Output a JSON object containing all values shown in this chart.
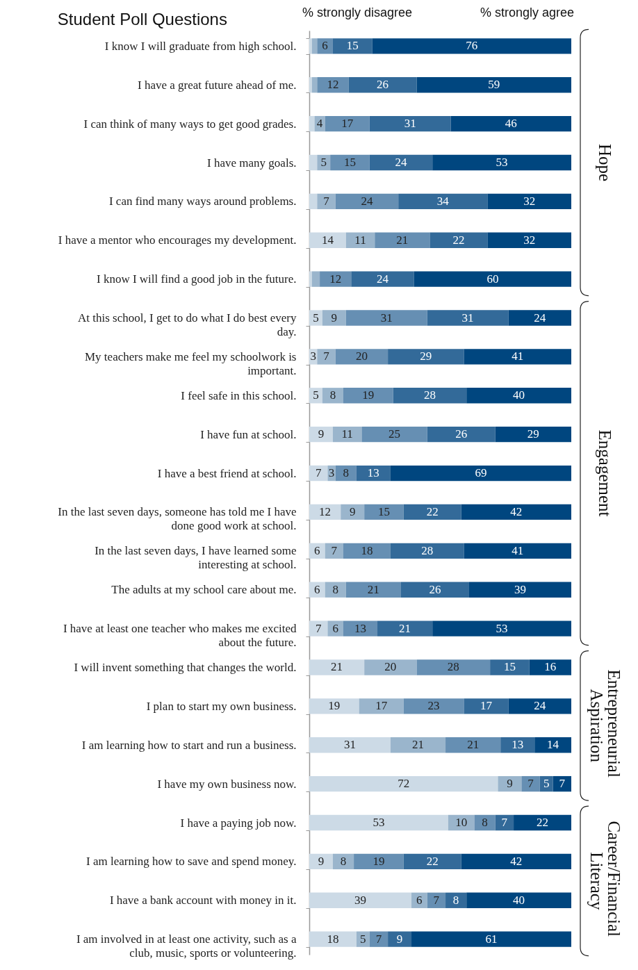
{
  "chart_data": {
    "type": "bar",
    "orientation": "horizontal",
    "stacked": true,
    "title": "Student Poll Questions",
    "categories": [
      "I know I will graduate from high school.",
      "I have a great future ahead of me.",
      "I can think of many ways to get good grades.",
      "I have many goals.",
      "I can find many ways around problems.",
      "I have a mentor who encourages my development.",
      "I know I will find a good job in the future.",
      "At this school, I get to do what I do best every day.",
      "My teachers make me feel my schoolwork is important.",
      "I feel safe in this school.",
      "I have fun at school.",
      "I have a best friend at school.",
      "In the last seven days, someone has told me I have done good work at school.",
      "In the last seven days, I have learned some interesting at school.",
      "The adults at my school care about me.",
      "I have at least one teacher who makes me excited about the future.",
      "I will invent something that changes the world.",
      "I plan to start my own business.",
      "I am learning how to start and run a business.",
      "I have my own business now.",
      "I have a paying job now.",
      "I am learning how to save and spend money.",
      "I have a bank account with money in it.",
      "I am involved in at least one activity, such as a club, music, sports or volunteering."
    ],
    "series": [
      {
        "color": "#ccdae6",
        "values": [
          1,
          1,
          2,
          3,
          3,
          14,
          1,
          5,
          3,
          5,
          9,
          7,
          12,
          6,
          6,
          7,
          21,
          19,
          31,
          72,
          53,
          9,
          39,
          18
        ],
        "value_labels": [
          null,
          null,
          null,
          null,
          null,
          "14",
          null,
          "5",
          "3",
          "5",
          "9",
          "7",
          "12",
          "6",
          "6",
          "7",
          "21",
          "19",
          "31",
          "72",
          "53",
          "9",
          "39",
          "18"
        ]
      },
      {
        "color": "#9ab5cc",
        "values": [
          2,
          2,
          4,
          5,
          7,
          11,
          3,
          9,
          7,
          8,
          11,
          3,
          9,
          7,
          8,
          6,
          20,
          17,
          21,
          9,
          10,
          8,
          6,
          5
        ],
        "value_labels": [
          null,
          null,
          "4",
          "5",
          "7",
          "11",
          null,
          "9",
          "7",
          "8",
          "11",
          "3",
          "9",
          "7",
          "8",
          "6",
          "20",
          "17",
          "21",
          "9",
          "10",
          "8",
          "6",
          "5"
        ]
      },
      {
        "color": "#668fb3",
        "values": [
          6,
          12,
          17,
          15,
          24,
          21,
          12,
          31,
          20,
          19,
          25,
          8,
          15,
          18,
          21,
          13,
          28,
          23,
          21,
          7,
          8,
          19,
          7,
          7
        ],
        "data_labels": true
      },
      {
        "color": "#336a99",
        "values": [
          15,
          26,
          31,
          24,
          34,
          22,
          24,
          31,
          29,
          28,
          26,
          13,
          22,
          28,
          26,
          21,
          15,
          17,
          13,
          5,
          7,
          22,
          8,
          9
        ],
        "data_labels": true
      },
      {
        "color": "#00467f",
        "values": [
          76,
          59,
          46,
          53,
          32,
          32,
          60,
          24,
          41,
          40,
          29,
          69,
          42,
          41,
          39,
          53,
          16,
          24,
          14,
          7,
          22,
          42,
          40,
          61
        ],
        "data_labels": true
      }
    ],
    "xlim": [
      0,
      100
    ],
    "tick_labels": "y",
    "annotations": [
      "% strongly disagree",
      "% strongly agree",
      "Hope",
      "Engagement",
      "Entrepreneurial Aspiration",
      "Career/Financial Literacy"
    ]
  }
}
